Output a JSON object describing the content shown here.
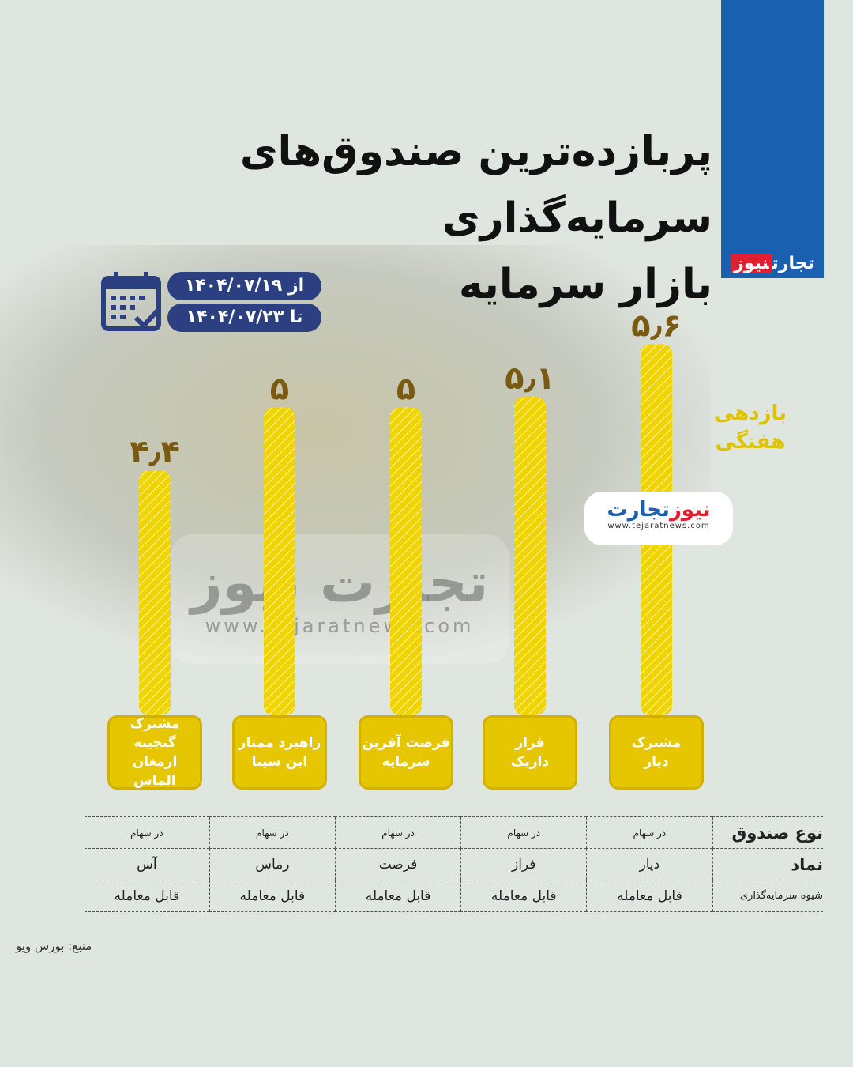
{
  "title_line1": "پربازده‌ترین صندوق‌های سرمایه‌گذاری",
  "title_line2": "بازار سرمایه",
  "brand": {
    "part1": "تجارت",
    "part2": "نیوز",
    "url": "www.tejaratnews.com"
  },
  "date": {
    "from": "از ۱۴۰۴/۰۷/۱۹",
    "to": "تا ۱۴۰۴/۰۷/۲۳",
    "icon": "calendar-check-icon"
  },
  "colors": {
    "bar": "#f0d400",
    "header_blue": "#1a5fb0",
    "date_pill": "#2c3f80",
    "brand_red": "#e02030"
  },
  "chart_data": {
    "type": "bar",
    "ylabel": "بازدهی هفتگی",
    "categories": [
      "مشترک دیار",
      "فراز داریک",
      "فرصت آفرین سرمایه",
      "راهبرد ممتاز ابن سینا",
      "مشترک گنجینه ارمغان الماس"
    ],
    "category_lines": [
      [
        "مشترک",
        "دیار"
      ],
      [
        "فراز",
        "داریک"
      ],
      [
        "فرصت آفرین",
        "سرمایه"
      ],
      [
        "راهبرد ممتاز",
        "ابن سینا"
      ],
      [
        "مشترک گنجینه",
        "ارمغان الماس"
      ]
    ],
    "values": [
      5.6,
      5.1,
      5,
      5,
      4.4
    ],
    "data_labels": [
      "۵٫۶",
      "۵٫۱",
      "۵",
      "۵",
      "۴٫۴"
    ],
    "grid": false
  },
  "table": {
    "headers": [
      "نوع صندوق",
      "نماد",
      "شیوه سرمایه‌گذاری"
    ],
    "fund_type": [
      "در سهام",
      "در سهام",
      "در سهام",
      "در سهام",
      "در سهام"
    ],
    "symbol": [
      "دیار",
      "فراز",
      "فرصت",
      "رماس",
      "آس"
    ],
    "method": [
      "قابل معامله",
      "قابل معامله",
      "قابل معامله",
      "قابل معامله",
      "قابل معامله"
    ]
  },
  "source": "منبع: بورس ویو"
}
